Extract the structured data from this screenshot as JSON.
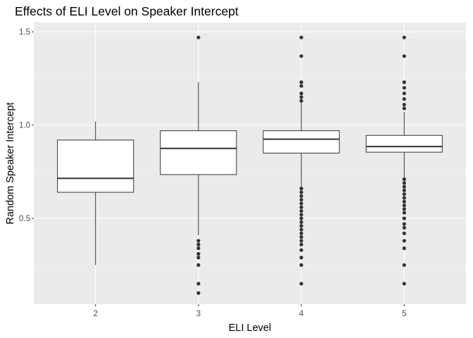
{
  "chart_data": {
    "type": "boxplot",
    "title": "Effects of ELI Level on Speaker Intercept",
    "xlabel": "ELI Level",
    "ylabel": "Random Speaker Intercept",
    "categories": [
      "2",
      "3",
      "4",
      "5"
    ],
    "ylim": [
      0.04,
      1.55
    ],
    "yticks": [
      0.5,
      1.0,
      1.5
    ],
    "ytick_labels": [
      "0.5",
      "1.0",
      "1.5"
    ],
    "grid": true,
    "boxes": [
      {
        "category": "2",
        "q1": 0.64,
        "median": 0.715,
        "q3": 0.92,
        "whisker_low": 0.25,
        "whisker_high": 1.02,
        "outliers": []
      },
      {
        "category": "3",
        "q1": 0.735,
        "median": 0.875,
        "q3": 0.97,
        "whisker_low": 0.41,
        "whisker_high": 1.23,
        "outliers": [
          1.47,
          0.38,
          0.36,
          0.34,
          0.31,
          0.29,
          0.25,
          0.15,
          0.1
        ]
      },
      {
        "category": "4",
        "q1": 0.85,
        "median": 0.925,
        "q3": 0.97,
        "whisker_low": 0.67,
        "whisker_high": 1.12,
        "outliers": [
          1.47,
          1.37,
          1.23,
          1.21,
          1.17,
          1.15,
          1.13,
          0.66,
          0.64,
          0.62,
          0.6,
          0.58,
          0.56,
          0.54,
          0.52,
          0.5,
          0.48,
          0.46,
          0.44,
          0.42,
          0.4,
          0.38,
          0.36,
          0.33,
          0.29,
          0.25,
          0.15
        ]
      },
      {
        "category": "5",
        "q1": 0.855,
        "median": 0.885,
        "q3": 0.945,
        "whisker_low": 0.72,
        "whisker_high": 1.07,
        "outliers": [
          1.47,
          1.37,
          1.23,
          1.2,
          1.17,
          1.14,
          1.11,
          1.09,
          0.71,
          0.69,
          0.67,
          0.65,
          0.63,
          0.61,
          0.59,
          0.57,
          0.55,
          0.53,
          0.5,
          0.47,
          0.45,
          0.42,
          0.38,
          0.34,
          0.25,
          0.15
        ]
      }
    ]
  }
}
